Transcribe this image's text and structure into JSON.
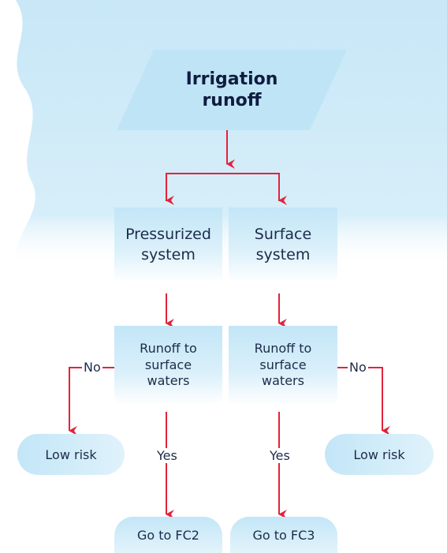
{
  "nodes": [
    {
      "label": "Irrigation runoff"
    },
    {
      "label": "Pressurized system"
    },
    {
      "label": "Surface system"
    },
    {
      "label": "Runoff to surface waters"
    },
    {
      "label": "Runoff to surface waters"
    },
    {
      "label": "Low risk"
    },
    {
      "label": "Low risk"
    },
    {
      "label": "Go to FC2"
    },
    {
      "label": "Go to FC3"
    }
  ],
  "edges": [
    {
      "label": "No"
    },
    {
      "label": "No"
    },
    {
      "label": "Yes"
    },
    {
      "label": "Yes"
    }
  ]
}
